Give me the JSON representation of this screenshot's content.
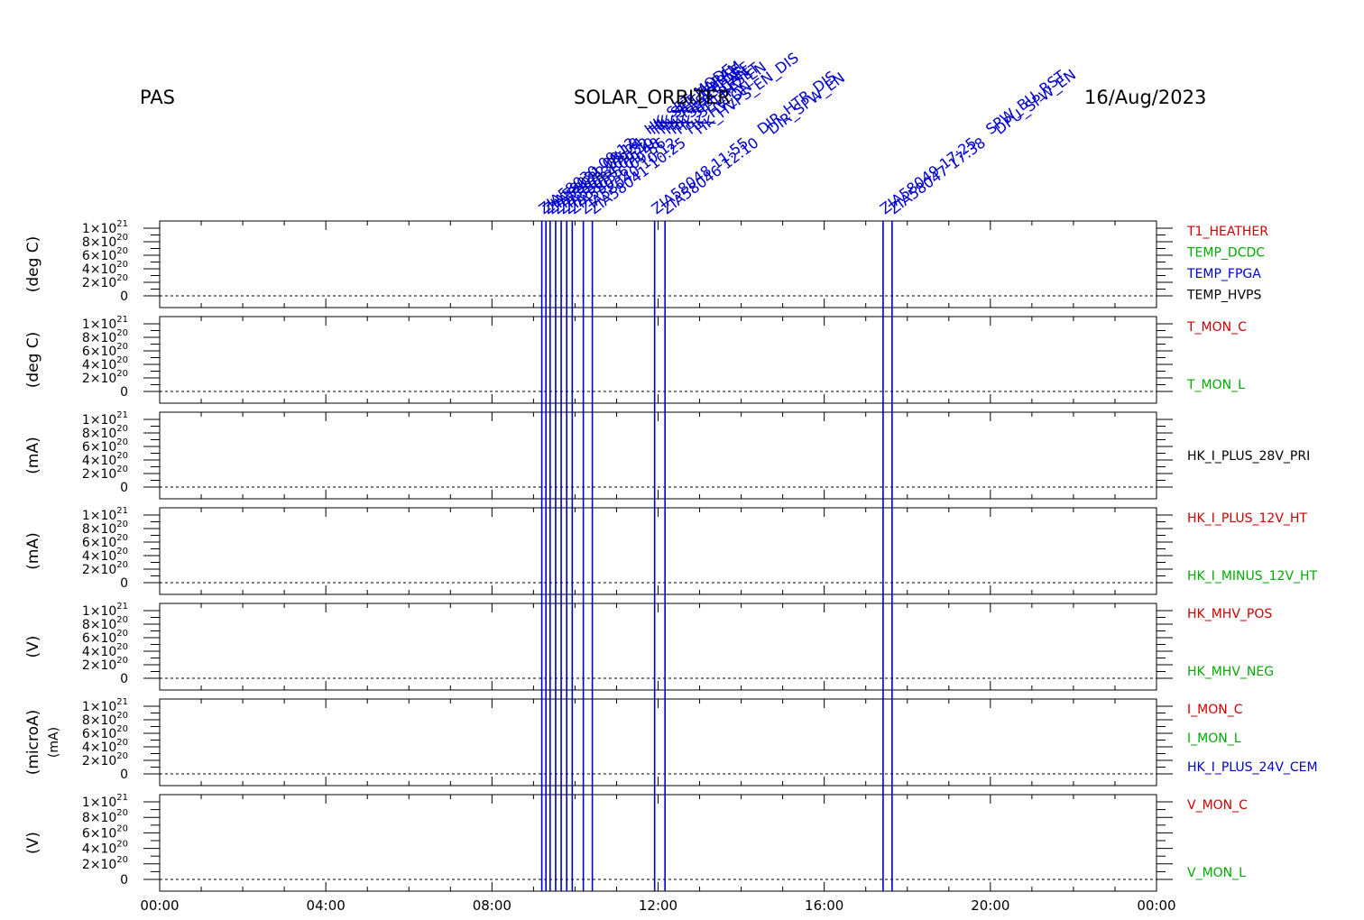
{
  "header": {
    "instrument": "PAS",
    "title": "SOLAR_ORBITER",
    "date": "16/Aug/2023"
  },
  "chart_data": {
    "type": "line",
    "x_axis": {
      "range_hours": [
        0,
        24
      ],
      "tick_labels": [
        "00:00",
        "04:00",
        "08:00",
        "12:00",
        "16:00",
        "20:00",
        "00:00"
      ]
    },
    "y_axis": {
      "range": [
        0,
        1e+21
      ],
      "tick_labels": [
        {
          "mantissa": "0",
          "exp": ""
        },
        {
          "mantissa": "2×10",
          "exp": "20"
        },
        {
          "mantissa": "4×10",
          "exp": "20"
        },
        {
          "mantissa": "6×10",
          "exp": "20"
        },
        {
          "mantissa": "8×10",
          "exp": "20"
        },
        {
          "mantissa": "1×10",
          "exp": "21"
        }
      ]
    },
    "panels": [
      {
        "ylabel": "(deg C)",
        "series": [
          {
            "name": "T1_HEATHER",
            "color": "#cc0000"
          },
          {
            "name": "TEMP_DCDC",
            "color": "#00aa00"
          },
          {
            "name": "TEMP_FPGA",
            "color": "#0000cc"
          },
          {
            "name": "TEMP_HVPS",
            "color": "#000000"
          }
        ]
      },
      {
        "ylabel": "(deg C)",
        "series": [
          {
            "name": "T_MON_C",
            "color": "#cc0000"
          },
          {
            "name": "T_MON_L",
            "color": "#00aa00"
          }
        ]
      },
      {
        "ylabel": "(mA)",
        "series": [
          {
            "name": "HK_I_PLUS_28V_PRI",
            "color": "#000000"
          }
        ]
      },
      {
        "ylabel": "(mA)",
        "series": [
          {
            "name": "HK_I_PLUS_12V_HT",
            "color": "#cc0000"
          },
          {
            "name": "HK_I_MINUS_12V_HT",
            "color": "#00aa00"
          }
        ]
      },
      {
        "ylabel": "(V)",
        "series": [
          {
            "name": "HK_MHV_POS",
            "color": "#cc0000"
          },
          {
            "name": "HK_MHV_NEG",
            "color": "#00aa00"
          }
        ]
      },
      {
        "ylabel": "(microA)",
        "ylabel2": "(mA)",
        "series": [
          {
            "name": "I_MON_C",
            "color": "#cc0000"
          },
          {
            "name": "I_MON_L",
            "color": "#00aa00"
          },
          {
            "name": "HK_I_PLUS_24V_CEM",
            "color": "#0000cc"
          }
        ]
      },
      {
        "ylabel": "(V)",
        "series": [
          {
            "name": "V_MON_C",
            "color": "#cc0000"
          },
          {
            "name": "V_MON_L",
            "color": "#00aa00"
          }
        ]
      }
    ],
    "event_color": "#0000cc",
    "events": [
      {
        "time": "09:12",
        "code": "ZIA58030",
        "label": "HK_SET_MODE"
      },
      {
        "time": "09:18",
        "code": "ZIA58031",
        "label": "HK_SET_PARAM"
      },
      {
        "time": "09:24",
        "code": "ZIA58032",
        "label": "HK_SET_TABLE"
      },
      {
        "time": "09:32",
        "code": "ZIA58033",
        "label": "HK_RESET_DEF"
      },
      {
        "time": "09:40",
        "code": "ZIA58034",
        "label": "HK_SET_SCAN"
      },
      {
        "time": "09:48",
        "code": "ZIA58035",
        "label": "HK_SET_RESET"
      },
      {
        "time": "09:56",
        "code": "ZIA58036",
        "label": "HK_SET_HV_EN"
      },
      {
        "time": "10:12",
        "code": "ZIA58040",
        "label": "HK_HV_ON"
      },
      {
        "time": "10:25",
        "code": "ZIA58041",
        "label": "HK_HVPS_EN_DIS"
      },
      {
        "time": "11:55",
        "code": "ZIA58048",
        "label": "DIR_HTR_DIS"
      },
      {
        "time": "12:10",
        "code": "ZIA58046",
        "label": "DIR_SPW_EN"
      },
      {
        "time": "17:25",
        "code": "ZIA58049",
        "label": "SPW_BU_RST"
      },
      {
        "time": "17:38",
        "code": "ZIA58047",
        "label": "DPU_SPW_EN"
      }
    ]
  }
}
